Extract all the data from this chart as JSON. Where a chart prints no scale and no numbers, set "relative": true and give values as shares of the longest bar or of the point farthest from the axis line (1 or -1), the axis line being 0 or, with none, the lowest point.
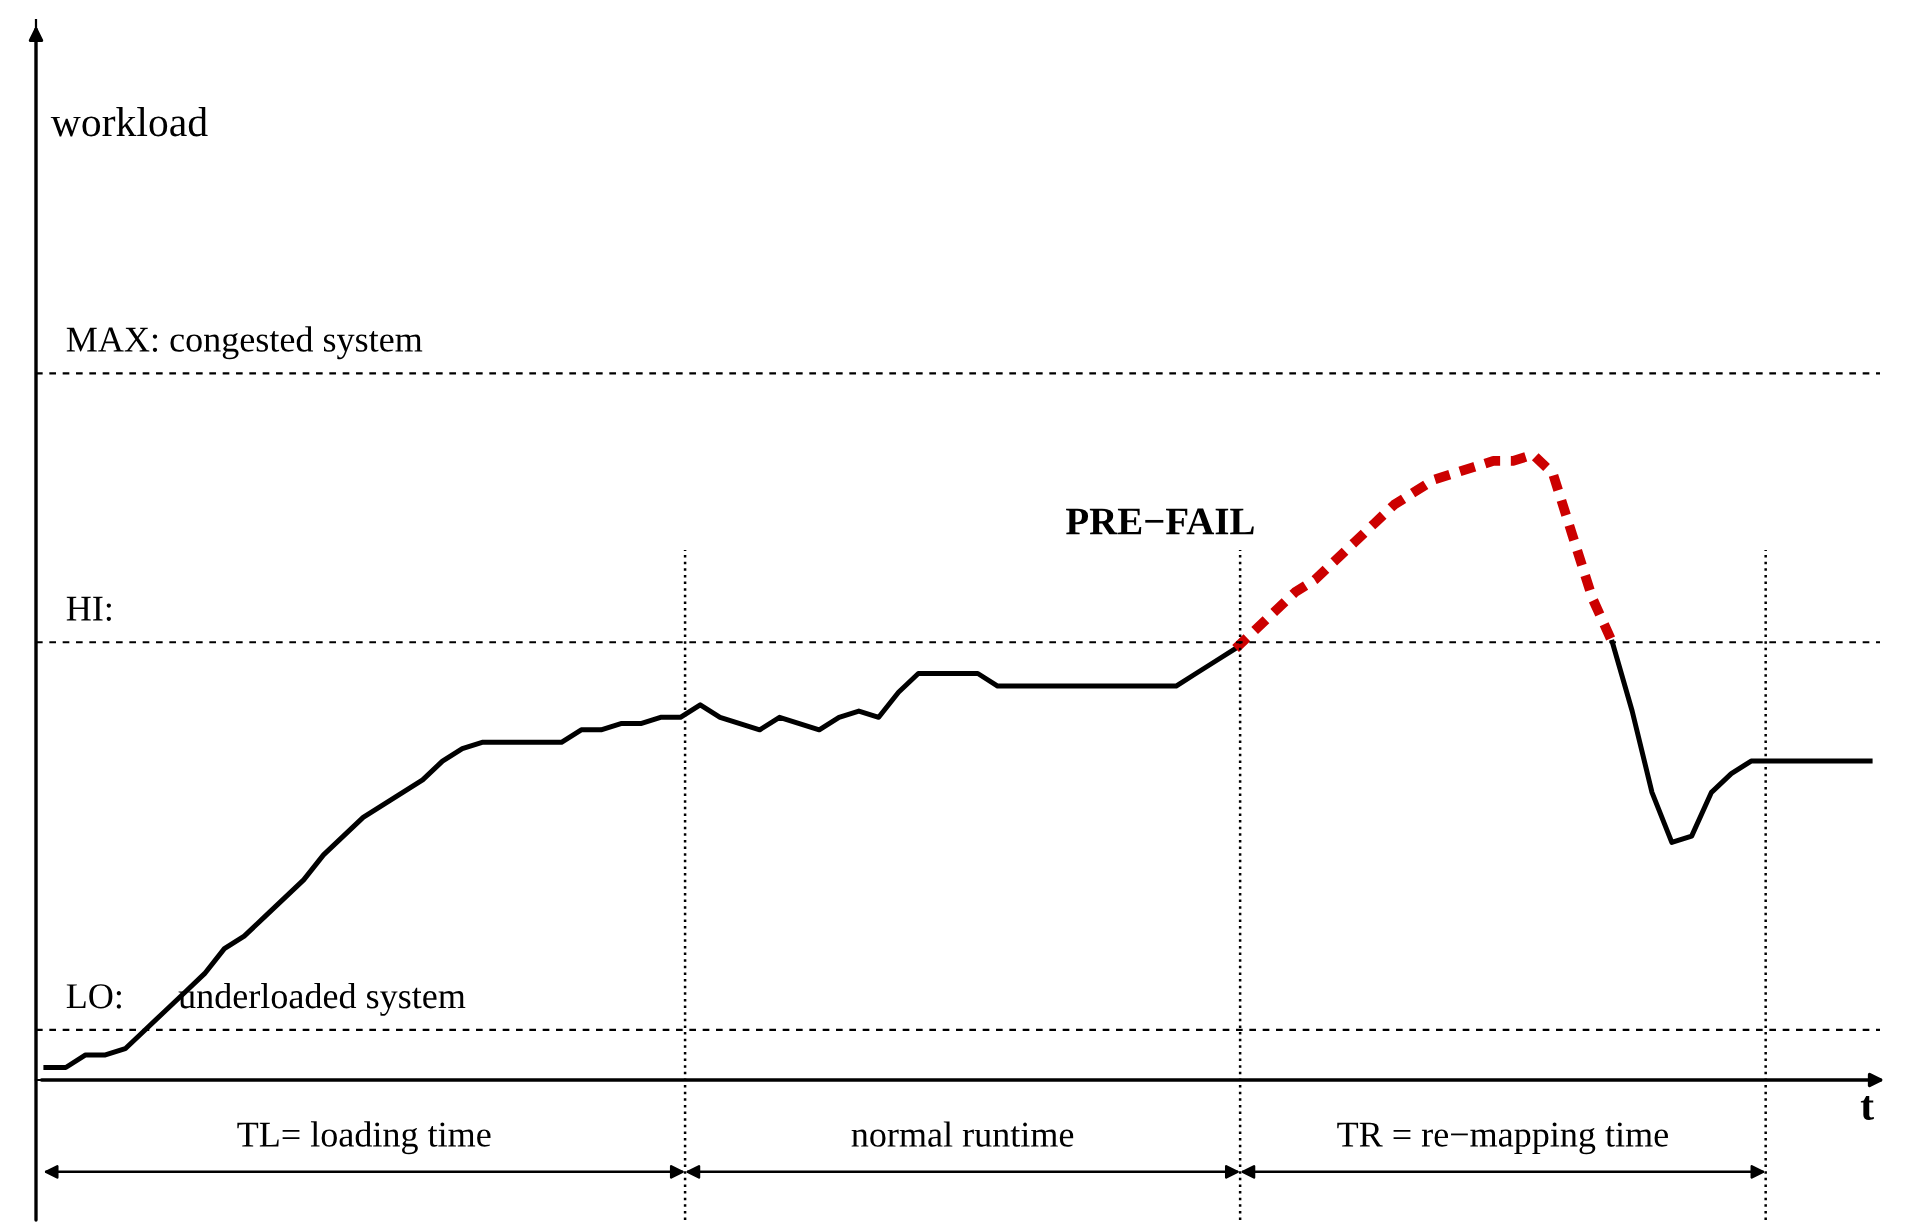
{
  "chart_data": {
    "type": "line",
    "relative": true,
    "xlabel": "t",
    "categories": [
      null,
      null,
      null,
      null,
      null,
      null,
      null,
      null,
      null,
      null,
      null,
      null,
      null,
      null,
      null,
      null,
      null,
      null,
      null,
      null,
      null,
      null,
      null,
      null,
      null,
      null,
      null,
      null,
      null,
      null,
      null,
      null,
      null,
      null,
      null,
      null,
      null,
      null,
      null,
      null,
      null,
      null,
      null,
      null,
      null,
      null,
      null,
      null,
      null,
      null,
      null,
      null,
      null,
      null,
      null,
      null,
      null,
      null,
      null,
      null,
      null,
      null,
      null,
      null,
      null,
      null,
      null,
      null,
      null,
      null,
      null,
      null,
      null,
      null,
      null,
      null,
      null,
      null,
      null,
      null,
      null,
      null,
      null,
      null,
      null,
      null,
      null,
      null,
      null,
      null,
      null,
      null,
      null
    ],
    "series": [
      {
        "color": "#000000",
        "line_style": "solid",
        "values": [
          0.02,
          0.02,
          0.04,
          0.04,
          0.05,
          0.08,
          0.11,
          0.14,
          0.17,
          0.21,
          0.23,
          0.26,
          0.29,
          0.32,
          0.36,
          0.39,
          0.42,
          0.44,
          0.46,
          0.48,
          0.51,
          0.53,
          0.54,
          0.54,
          0.54,
          0.54,
          0.54,
          0.56,
          0.56,
          0.57,
          0.57,
          0.58,
          0.58,
          0.6,
          0.58,
          0.57,
          0.56,
          0.58,
          0.57,
          0.56,
          0.58,
          0.59,
          0.58,
          0.62,
          0.65,
          0.65,
          0.65,
          0.65,
          0.63,
          0.63,
          0.63,
          0.63,
          0.63,
          0.63,
          0.63,
          0.63,
          0.63,
          0.63,
          0.65,
          0.67,
          0.69,
          null,
          null,
          null,
          null,
          null,
          null,
          null,
          null,
          null,
          null,
          null,
          null,
          null,
          null,
          null,
          null,
          null,
          null,
          null,
          null,
          null,
          null,
          null,
          null,
          null,
          null,
          null,
          null,
          null,
          null,
          null,
          null
        ]
      },
      {
        "color": "#cc0000",
        "line_style": "dashed",
        "values": [
          null,
          null,
          null,
          null,
          null,
          null,
          null,
          null,
          null,
          null,
          null,
          null,
          null,
          null,
          null,
          null,
          null,
          null,
          null,
          null,
          null,
          null,
          null,
          null,
          null,
          null,
          null,
          null,
          null,
          null,
          null,
          null,
          null,
          null,
          null,
          null,
          null,
          null,
          null,
          null,
          null,
          null,
          null,
          null,
          null,
          null,
          null,
          null,
          null,
          null,
          null,
          null,
          null,
          null,
          null,
          null,
          null,
          null,
          null,
          null,
          0.69,
          0.72,
          0.75,
          0.78,
          0.8,
          0.83,
          0.86,
          0.89,
          0.92,
          0.94,
          0.96,
          0.97,
          0.98,
          0.99,
          0.99,
          1,
          0.97,
          0.87,
          0.77,
          0.7,
          null,
          null,
          null,
          null,
          null,
          null,
          null,
          null,
          null,
          null,
          null,
          null,
          null
        ]
      },
      {
        "color": "#000000",
        "line_style": "solid",
        "values": [
          null,
          null,
          null,
          null,
          null,
          null,
          null,
          null,
          null,
          null,
          null,
          null,
          null,
          null,
          null,
          null,
          null,
          null,
          null,
          null,
          null,
          null,
          null,
          null,
          null,
          null,
          null,
          null,
          null,
          null,
          null,
          null,
          null,
          null,
          null,
          null,
          null,
          null,
          null,
          null,
          null,
          null,
          null,
          null,
          null,
          null,
          null,
          null,
          null,
          null,
          null,
          null,
          null,
          null,
          null,
          null,
          null,
          null,
          null,
          null,
          null,
          null,
          null,
          null,
          null,
          null,
          null,
          null,
          null,
          null,
          null,
          null,
          null,
          null,
          null,
          null,
          null,
          null,
          null,
          0.7,
          0.59,
          0.46,
          0.38,
          0.39,
          0.46,
          0.49,
          0.51,
          0.51,
          0.51,
          0.51,
          0.51,
          0.51,
          0.51
        ]
      }
    ],
    "ref_lines": [
      {
        "axis": "y",
        "value": 1.13,
        "label": "MAX: congested system",
        "line_style": "dashed",
        "color": "#000000"
      },
      {
        "axis": "y",
        "value": 0.7,
        "label": "HI:",
        "line_style": "dashed",
        "color": "#000000"
      },
      {
        "axis": "y",
        "value": 0.08,
        "label": "LO:      underloaded system",
        "line_style": "dashed",
        "color": "#000000"
      }
    ],
    "annotations": [
      "workload",
      "PRE−FAIL",
      "TL= loading time",
      "normal runtime",
      "TR = re−mapping time"
    ],
    "marker": "none"
  }
}
